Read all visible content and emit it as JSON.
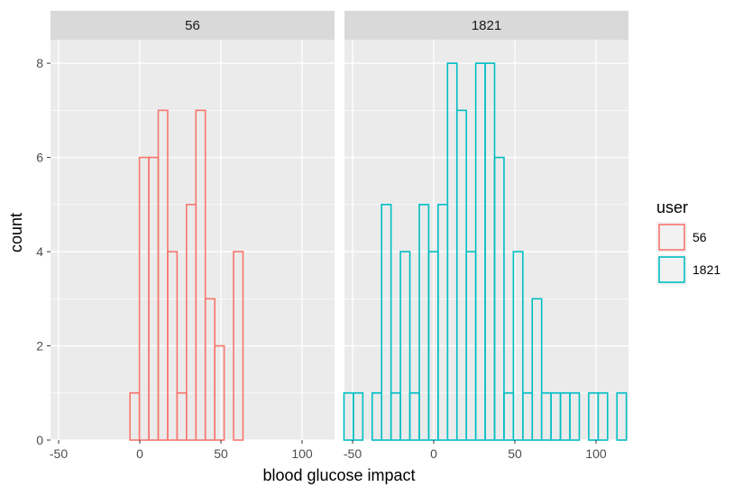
{
  "chart_data": {
    "type": "bar",
    "subtype": "faceted-histogram",
    "xlabel": "blood glucose impact",
    "ylabel": "count",
    "xlim": [
      -55,
      120
    ],
    "ylim": [
      0,
      8.5
    ],
    "x_ticks": [
      -50,
      0,
      50,
      100
    ],
    "y_ticks": [
      0,
      2,
      4,
      6,
      8
    ],
    "bin_width": 5.8,
    "grid": true,
    "legend": {
      "title": "user",
      "position": "right",
      "entries": [
        {
          "label": "56",
          "color": "#F8766D"
        },
        {
          "label": "1821",
          "color": "#00BFC4"
        }
      ]
    },
    "facets": [
      {
        "label": "56",
        "color": "#F8766D",
        "bin_start": -52.4,
        "counts": [
          0,
          0,
          0,
          0,
          0,
          0,
          0,
          0,
          1,
          6,
          6,
          7,
          4,
          1,
          5,
          7,
          3,
          2,
          0,
          4,
          0,
          0,
          0,
          0,
          0,
          0,
          0,
          0,
          0,
          0
        ]
      },
      {
        "label": "1821",
        "color": "#00BFC4",
        "bin_start": -55.3,
        "counts": [
          1,
          1,
          0,
          1,
          5,
          1,
          4,
          1,
          5,
          4,
          5,
          8,
          7,
          4,
          8,
          8,
          6,
          1,
          4,
          1,
          3,
          1,
          1,
          1,
          1,
          0,
          1,
          1,
          0,
          1
        ]
      }
    ]
  }
}
